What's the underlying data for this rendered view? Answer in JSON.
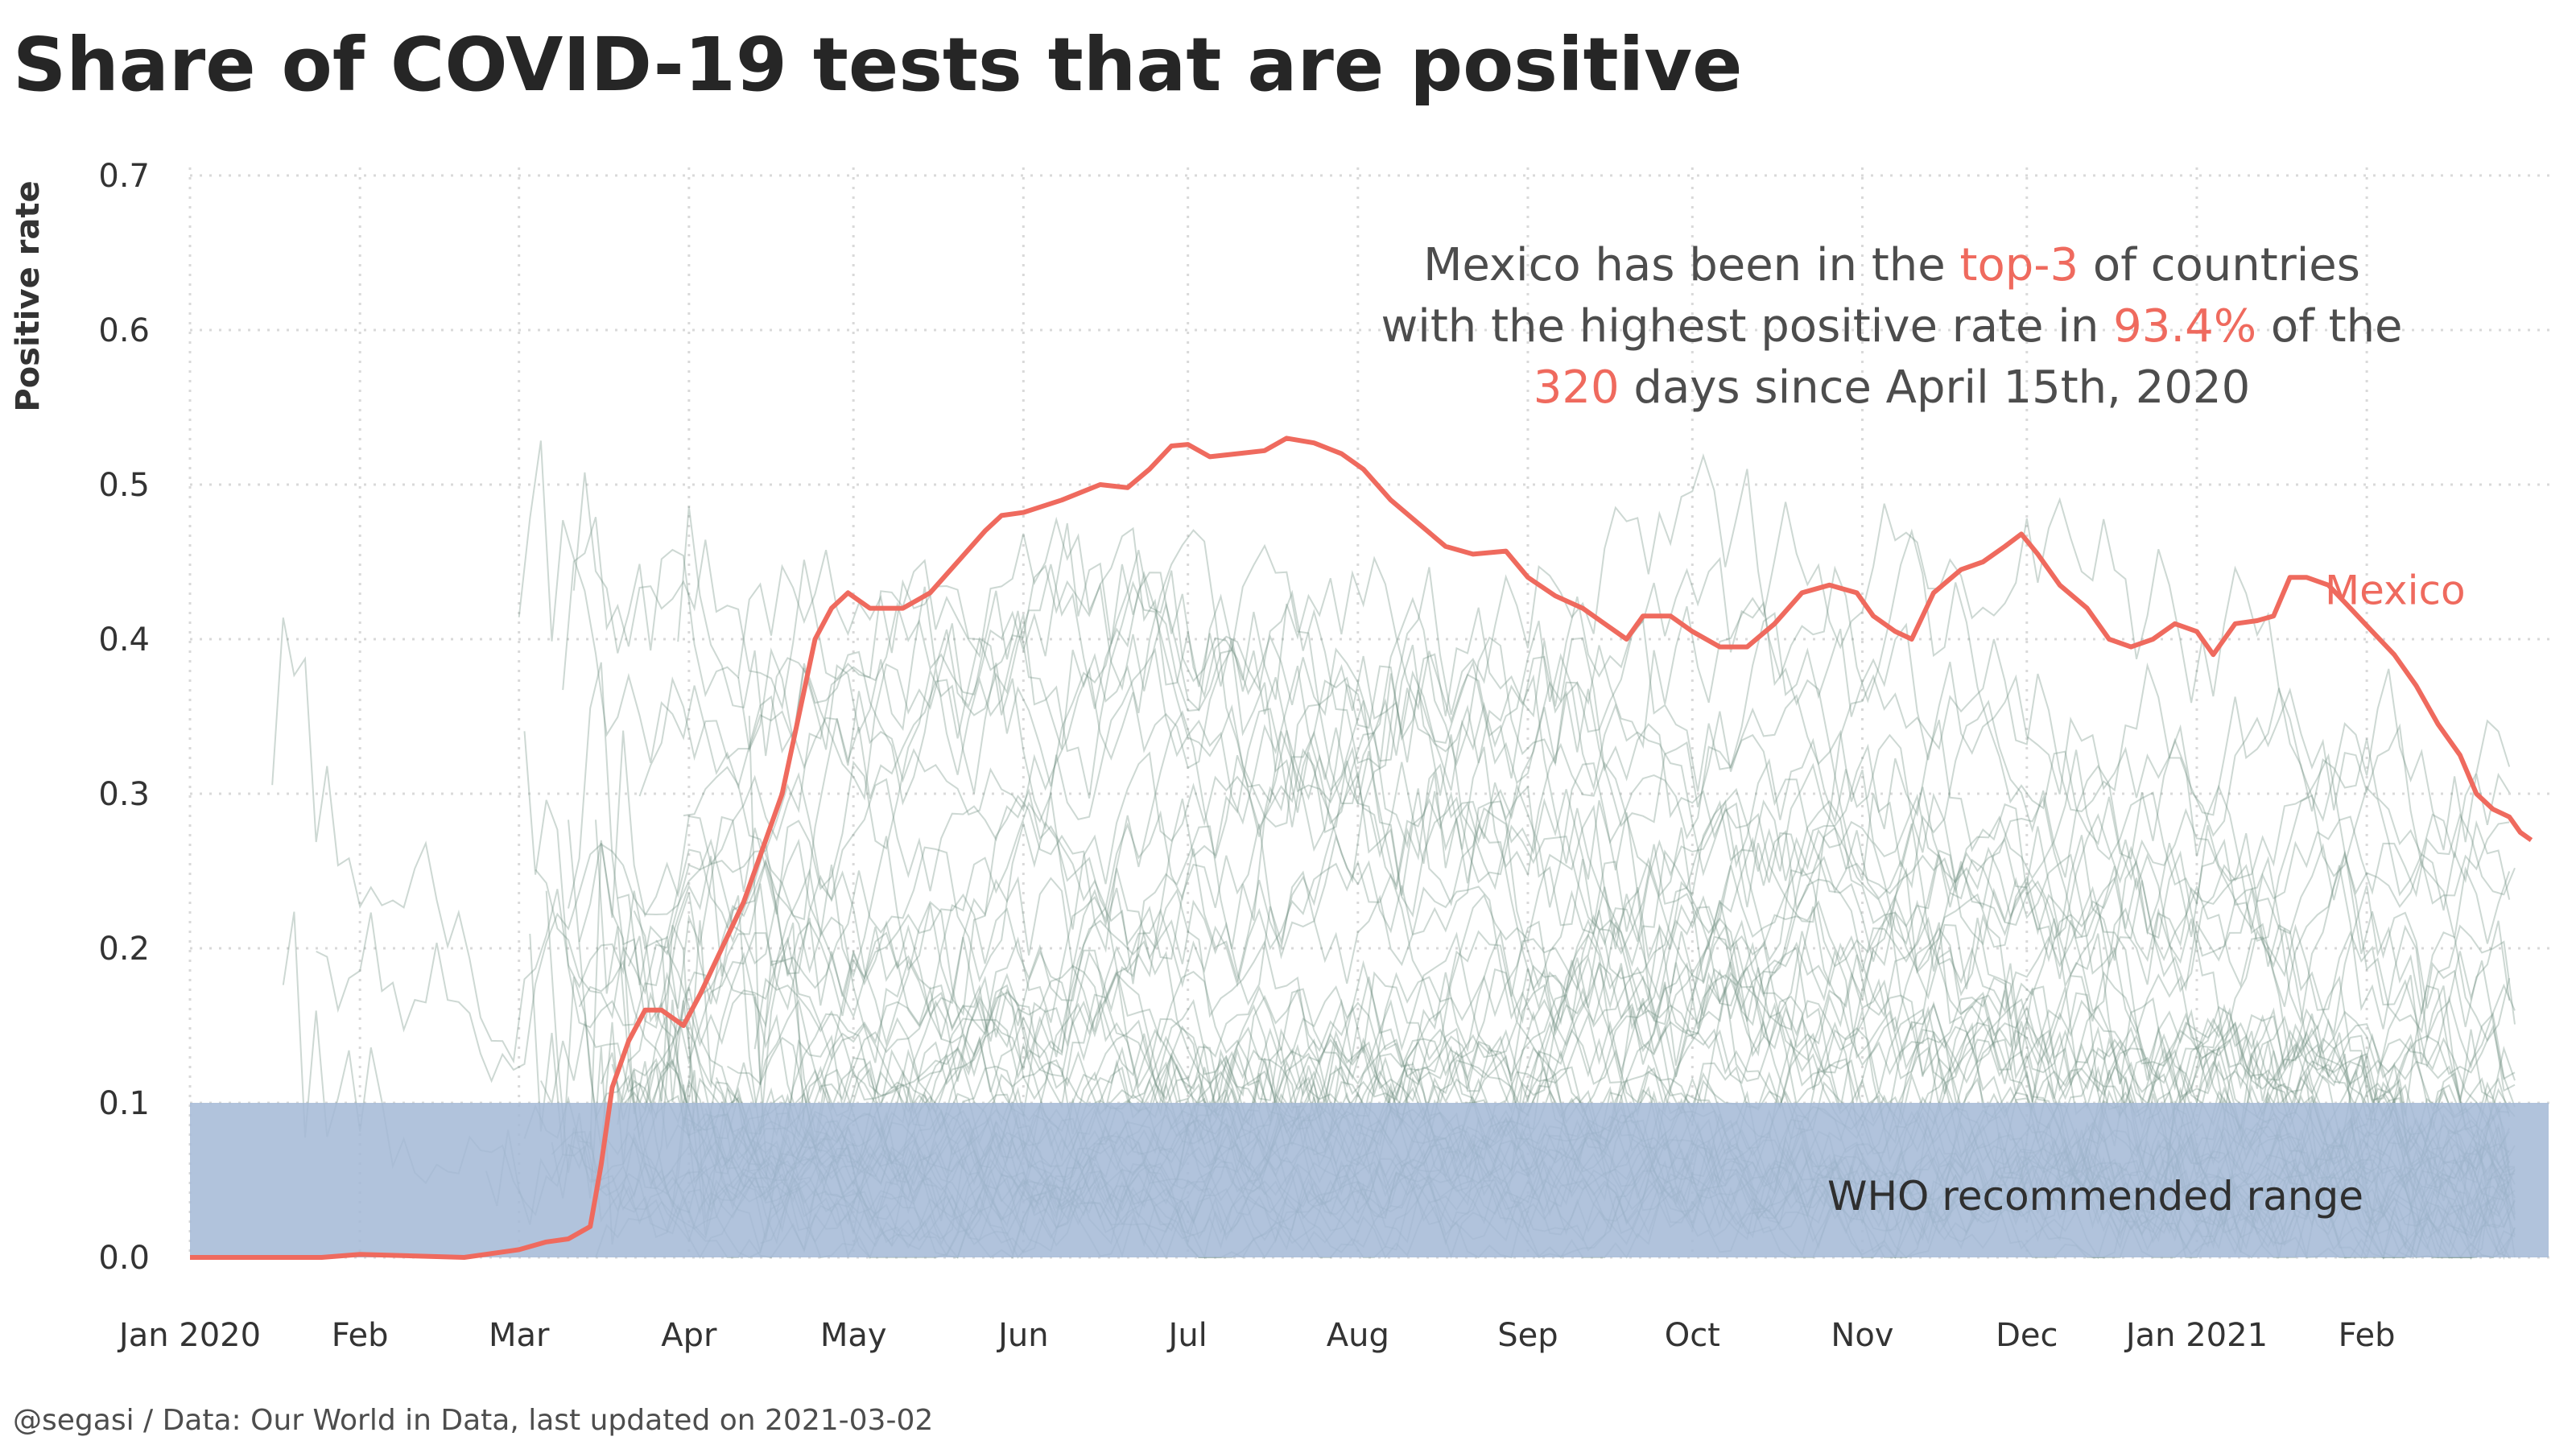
{
  "chart_data": {
    "type": "line",
    "title": "Share of COVID-19 tests that are positive",
    "xlabel": "",
    "ylabel": "Positive rate",
    "ylim": [
      0,
      0.7
    ],
    "xlim": [
      "2020-01-01",
      "2021-02-28"
    ],
    "y_ticks": [
      "0.0",
      "0.1",
      "0.2",
      "0.3",
      "0.4",
      "0.5",
      "0.6",
      "0.7"
    ],
    "x_ticks": [
      {
        "label": "Jan 2020",
        "date": "2020-01-01"
      },
      {
        "label": "Feb",
        "date": "2020-02-01"
      },
      {
        "label": "Mar",
        "date": "2020-03-01"
      },
      {
        "label": "Apr",
        "date": "2020-04-01"
      },
      {
        "label": "May",
        "date": "2020-05-01"
      },
      {
        "label": "Jun",
        "date": "2020-06-01"
      },
      {
        "label": "Jul",
        "date": "2020-07-01"
      },
      {
        "label": "Aug",
        "date": "2020-08-01"
      },
      {
        "label": "Sep",
        "date": "2020-09-01"
      },
      {
        "label": "Oct",
        "date": "2020-10-01"
      },
      {
        "label": "Nov",
        "date": "2020-11-01"
      },
      {
        "label": "Dec",
        "date": "2020-12-01"
      },
      {
        "label": "Jan 2021",
        "date": "2021-01-01"
      },
      {
        "label": "Feb",
        "date": "2021-02-01"
      }
    ],
    "grid": true,
    "legend": "none",
    "highlight_series": {
      "name": "Mexico",
      "color": "#ef6a5e",
      "points": [
        [
          "2020-01-01",
          0.0
        ],
        [
          "2020-01-25",
          0.0
        ],
        [
          "2020-02-01",
          0.002
        ],
        [
          "2020-02-20",
          0.0
        ],
        [
          "2020-03-01",
          0.005
        ],
        [
          "2020-03-06",
          0.01
        ],
        [
          "2020-03-10",
          0.012
        ],
        [
          "2020-03-14",
          0.02
        ],
        [
          "2020-03-16",
          0.06
        ],
        [
          "2020-03-18",
          0.11
        ],
        [
          "2020-03-21",
          0.14
        ],
        [
          "2020-03-24",
          0.16
        ],
        [
          "2020-03-27",
          0.16
        ],
        [
          "2020-03-31",
          0.15
        ],
        [
          "2020-04-03",
          0.17
        ],
        [
          "2020-04-07",
          0.2
        ],
        [
          "2020-04-11",
          0.23
        ],
        [
          "2020-04-15",
          0.27
        ],
        [
          "2020-04-18",
          0.3
        ],
        [
          "2020-04-21",
          0.35
        ],
        [
          "2020-04-24",
          0.4
        ],
        [
          "2020-04-27",
          0.42
        ],
        [
          "2020-04-30",
          0.43
        ],
        [
          "2020-05-04",
          0.42
        ],
        [
          "2020-05-10",
          0.42
        ],
        [
          "2020-05-15",
          0.43
        ],
        [
          "2020-05-20",
          0.45
        ],
        [
          "2020-05-25",
          0.47
        ],
        [
          "2020-05-28",
          0.48
        ],
        [
          "2020-06-01",
          0.482
        ],
        [
          "2020-06-08",
          0.49
        ],
        [
          "2020-06-15",
          0.5
        ],
        [
          "2020-06-20",
          0.498
        ],
        [
          "2020-06-24",
          0.51
        ],
        [
          "2020-06-28",
          0.525
        ],
        [
          "2020-07-01",
          0.526
        ],
        [
          "2020-07-05",
          0.518
        ],
        [
          "2020-07-10",
          0.52
        ],
        [
          "2020-07-15",
          0.522
        ],
        [
          "2020-07-19",
          0.53
        ],
        [
          "2020-07-24",
          0.527
        ],
        [
          "2020-07-29",
          0.52
        ],
        [
          "2020-08-02",
          0.51
        ],
        [
          "2020-08-07",
          0.49
        ],
        [
          "2020-08-12",
          0.475
        ],
        [
          "2020-08-17",
          0.46
        ],
        [
          "2020-08-22",
          0.455
        ],
        [
          "2020-08-28",
          0.457
        ],
        [
          "2020-09-01",
          0.44
        ],
        [
          "2020-09-06",
          0.428
        ],
        [
          "2020-09-11",
          0.42
        ],
        [
          "2020-09-15",
          0.41
        ],
        [
          "2020-09-19",
          0.4
        ],
        [
          "2020-09-22",
          0.415
        ],
        [
          "2020-09-27",
          0.415
        ],
        [
          "2020-10-01",
          0.405
        ],
        [
          "2020-10-06",
          0.395
        ],
        [
          "2020-10-11",
          0.395
        ],
        [
          "2020-10-16",
          0.41
        ],
        [
          "2020-10-21",
          0.43
        ],
        [
          "2020-10-26",
          0.435
        ],
        [
          "2020-10-31",
          0.43
        ],
        [
          "2020-11-03",
          0.415
        ],
        [
          "2020-11-07",
          0.405
        ],
        [
          "2020-11-10",
          0.4
        ],
        [
          "2020-11-14",
          0.43
        ],
        [
          "2020-11-19",
          0.445
        ],
        [
          "2020-11-23",
          0.45
        ],
        [
          "2020-11-27",
          0.46
        ],
        [
          "2020-11-30",
          0.468
        ],
        [
          "2020-12-03",
          0.455
        ],
        [
          "2020-12-07",
          0.435
        ],
        [
          "2020-12-12",
          0.42
        ],
        [
          "2020-12-16",
          0.4
        ],
        [
          "2020-12-20",
          0.395
        ],
        [
          "2020-12-24",
          0.4
        ],
        [
          "2020-12-28",
          0.41
        ],
        [
          "2021-01-01",
          0.405
        ],
        [
          "2021-01-04",
          0.39
        ],
        [
          "2021-01-08",
          0.41
        ],
        [
          "2021-01-12",
          0.412
        ],
        [
          "2021-01-15",
          0.415
        ],
        [
          "2021-01-18",
          0.44
        ],
        [
          "2021-01-21",
          0.44
        ],
        [
          "2021-01-25",
          0.435
        ],
        [
          "2021-01-29",
          0.42
        ],
        [
          "2021-02-02",
          0.405
        ],
        [
          "2021-02-06",
          0.39
        ],
        [
          "2021-02-10",
          0.37
        ],
        [
          "2021-02-14",
          0.345
        ],
        [
          "2021-02-18",
          0.325
        ],
        [
          "2021-02-21",
          0.3
        ],
        [
          "2021-02-24",
          0.29
        ],
        [
          "2021-02-27",
          0.285
        ],
        [
          "2021-03-01",
          0.275
        ],
        [
          "2021-03-03",
          0.27
        ]
      ]
    },
    "background_series_note": "many other countries shown as thin grey-green lines, mostly between 0.0 and 0.4",
    "background_color": "#6f8f80",
    "reference_band": {
      "label": "WHO recommended range",
      "y_range": [
        0,
        0.1
      ],
      "color": "#a3b9d6"
    },
    "annotation": {
      "parts": [
        {
          "text": "Mexico has been in the ",
          "hl": false
        },
        {
          "text": "top-3",
          "hl": true
        },
        {
          "text": " of countries",
          "hl": false
        },
        {
          "text": "with the highest positive rate in ",
          "hl": false
        },
        {
          "text": "93.4%",
          "hl": true
        },
        {
          "text": " of the",
          "hl": false
        },
        {
          "text": "320",
          "hl": true
        },
        {
          "text": " days since April 15th, 2020",
          "hl": false
        }
      ]
    },
    "caption": "@segasi / Data: Our World in Data, last updated on 2021-03-02"
  }
}
